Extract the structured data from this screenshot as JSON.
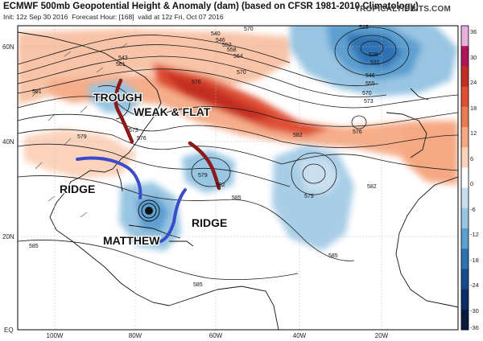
{
  "header": {
    "title": "ECMWF 500mb Geopotential Height & Anomaly (dam) (based on CFSR 1981-2010 Climatology)",
    "init": "Init: 12z Sep 30 2016",
    "forecast": "Forecast Hour: [168]",
    "valid": "valid at 12z Fri, Oct 07 2016",
    "brand": "TROPICALTIDBITS.COM"
  },
  "axes": {
    "lat_labels": [
      "60N",
      "40N",
      "20N",
      "EQ"
    ],
    "lon_labels": [
      "100W",
      "80W",
      "60W",
      "40W",
      "20W"
    ]
  },
  "colorbar": {
    "ticks": [
      "36",
      "30",
      "24",
      "18",
      "12",
      "6",
      "0",
      "-6",
      "-12",
      "-18",
      "-24",
      "-30",
      "-36"
    ],
    "colors": [
      "#e8b0dc",
      "#b0155a",
      "#c42e23",
      "#de4f34",
      "#ec7b54",
      "#f5a882",
      "#fbd3bc",
      "#ffffff",
      "#c9dff0",
      "#98c5e2",
      "#5c9fd0",
      "#2f72b4",
      "#154b8f",
      "#0b2d6a",
      "#081a40"
    ]
  },
  "contour_labels": [
    "570",
    "540",
    "543",
    "546",
    "552",
    "558",
    "561",
    "564",
    "570",
    "573",
    "576",
    "579",
    "582",
    "585",
    "585",
    "585",
    "582",
    "579",
    "579",
    "582",
    "576",
    "525",
    "528",
    "531",
    "546",
    "555",
    "570",
    "573",
    "561",
    "576",
    "585"
  ],
  "annotations": {
    "trough": "TROUGH",
    "weak_flat": "WEAK & FLAT",
    "ridge_west": "RIDGE",
    "ridge_east": "RIDGE",
    "storm": "MATTHEW"
  }
}
